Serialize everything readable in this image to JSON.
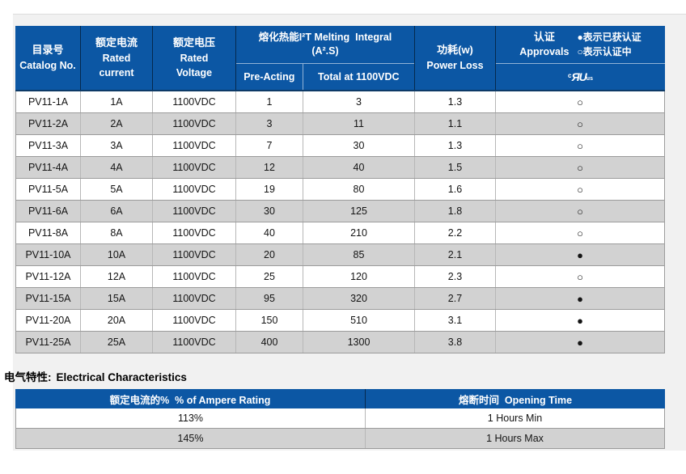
{
  "colors": {
    "header_blue": "#0c57a4",
    "alt_row_gray": "#d2d2d2",
    "panel_gray": "#f1f1f1"
  },
  "main_table": {
    "header": {
      "catalog_zh": "目录号",
      "catalog_en": "Catalog No.",
      "current_zh": "额定电流",
      "current_en_line1": "Rated",
      "current_en_line2": "current",
      "voltage_zh": "额定电压",
      "voltage_en_line1": "Rated",
      "voltage_en_line2": "Voltage",
      "melting_line1": "熔化热能I²T Melting  Integral",
      "melting_line2": "(A².S)",
      "pre_acting": "Pre-Acting",
      "total_at": "Total at 1100VDC",
      "power_zh": "功耗(w)",
      "power_en": "Power Loss",
      "approvals_zh": "认证",
      "approvals_en": "Approvals",
      "legend_line1": "●表示已获认证",
      "legend_line2": "○表示认证中",
      "ul_c": "c",
      "ul_ru": "ЯU",
      "ul_us": "us"
    },
    "rows": [
      {
        "catalog": "PV11-1A",
        "current": "1A",
        "voltage": "1100VDC",
        "pre_acting": "1",
        "total": "3",
        "power_loss": "1.3",
        "approval": "○"
      },
      {
        "catalog": "PV11-2A",
        "current": "2A",
        "voltage": "1100VDC",
        "pre_acting": "3",
        "total": "11",
        "power_loss": "1.1",
        "approval": "○"
      },
      {
        "catalog": "PV11-3A",
        "current": "3A",
        "voltage": "1100VDC",
        "pre_acting": "7",
        "total": "30",
        "power_loss": "1.3",
        "approval": "○"
      },
      {
        "catalog": "PV11-4A",
        "current": "4A",
        "voltage": "1100VDC",
        "pre_acting": "12",
        "total": "40",
        "power_loss": "1.5",
        "approval": "○"
      },
      {
        "catalog": "PV11-5A",
        "current": "5A",
        "voltage": "1100VDC",
        "pre_acting": "19",
        "total": "80",
        "power_loss": "1.6",
        "approval": "○"
      },
      {
        "catalog": "PV11-6A",
        "current": "6A",
        "voltage": "1100VDC",
        "pre_acting": "30",
        "total": "125",
        "power_loss": "1.8",
        "approval": "○"
      },
      {
        "catalog": "PV11-8A",
        "current": "8A",
        "voltage": "1100VDC",
        "pre_acting": "40",
        "total": "210",
        "power_loss": "2.2",
        "approval": "○"
      },
      {
        "catalog": "PV11-10A",
        "current": "10A",
        "voltage": "1100VDC",
        "pre_acting": "20",
        "total": "85",
        "power_loss": "2.1",
        "approval": "●"
      },
      {
        "catalog": "PV11-12A",
        "current": "12A",
        "voltage": "1100VDC",
        "pre_acting": "25",
        "total": "120",
        "power_loss": "2.3",
        "approval": "○"
      },
      {
        "catalog": "PV11-15A",
        "current": "15A",
        "voltage": "1100VDC",
        "pre_acting": "95",
        "total": "320",
        "power_loss": "2.7",
        "approval": "●"
      },
      {
        "catalog": "PV11-20A",
        "current": "20A",
        "voltage": "1100VDC",
        "pre_acting": "150",
        "total": "510",
        "power_loss": "3.1",
        "approval": "●"
      },
      {
        "catalog": "PV11-25A",
        "current": "25A",
        "voltage": "1100VDC",
        "pre_acting": "400",
        "total": "1300",
        "power_loss": "3.8",
        "approval": "●"
      }
    ]
  },
  "section2": {
    "heading_zh": "电气特性:",
    "heading_en": "Electrical Characteristics"
  },
  "electrical_table": {
    "header_percent": "额定电流的%  % of Ampere Rating",
    "header_time": "熔断时间  Opening Time",
    "rows": [
      {
        "percent": "113%",
        "time": "1 Hours Min"
      },
      {
        "percent": "145%",
        "time": "1 Hours Max"
      }
    ]
  }
}
